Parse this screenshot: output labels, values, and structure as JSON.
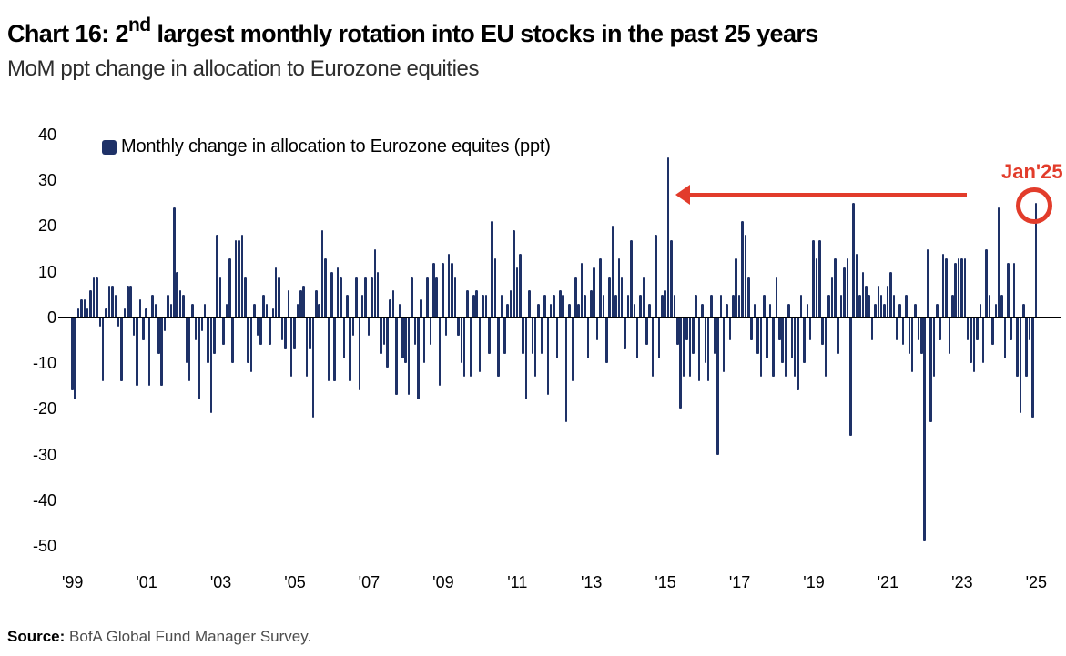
{
  "header": {
    "title_prefix": "Chart 16: 2",
    "title_superscript": "nd",
    "title_suffix": " largest monthly rotation into EU stocks in the past 25 years",
    "subtitle": "MoM ppt change in allocation to Eurozone equities"
  },
  "legend": {
    "label": "Monthly change in allocation to Eurozone equites (ppt)",
    "swatch_color": "#1e3167"
  },
  "annotation": {
    "label": "Jan'25",
    "color": "#e23c2b",
    "circled_month": "2025-01",
    "arrow_points_to_month": "2015-02"
  },
  "source": {
    "prefix": "Source:",
    "text": " BofA Global Fund Manager Survey."
  },
  "chart_data": {
    "type": "bar",
    "title": "Chart 16: 2nd largest monthly rotation into EU stocks in the past 25 years",
    "subtitle": "MoM ppt change in allocation to Eurozone equities",
    "xlabel": "",
    "ylabel": "",
    "ylim": [
      -50,
      40
    ],
    "yticks": [
      40,
      30,
      20,
      10,
      0,
      -10,
      -20,
      -30,
      -40,
      -50
    ],
    "xticklabels": [
      "'99",
      "'01",
      "'03",
      "'05",
      "'07",
      "'09",
      "'11",
      "'13",
      "'15",
      "'17",
      "'19",
      "'21",
      "'23",
      "'25"
    ],
    "x_start_year": 1999,
    "start_month": "1999-01",
    "end_month": "2025-01",
    "bar_color": "#1e3167",
    "grid": false,
    "legend_position": "top-left",
    "values": [
      -16,
      -18,
      2,
      4,
      4,
      2,
      6,
      9,
      9,
      -2,
      -14,
      2,
      7,
      7,
      5,
      -2,
      -14,
      2,
      7,
      7,
      -4,
      -15,
      4,
      -5,
      2,
      -15,
      5,
      3,
      -8,
      -15,
      -3,
      5,
      3,
      24,
      10,
      6,
      5,
      -10,
      -14,
      3,
      -5,
      -18,
      -3,
      3,
      -10,
      -21,
      -8,
      18,
      9,
      -6,
      3,
      13,
      -10,
      17,
      17,
      18,
      9,
      -10,
      -12,
      3,
      -4,
      -6,
      5,
      3,
      -6,
      2,
      11,
      9,
      -5,
      -7,
      6,
      -13,
      -7,
      3,
      6,
      7,
      -13,
      -7,
      -22,
      6,
      3,
      19,
      13,
      -14,
      10,
      -14,
      11,
      9,
      -9,
      5,
      -14,
      -4,
      9,
      -16,
      5,
      9,
      -4,
      9,
      15,
      10,
      -8,
      -6,
      -11,
      4,
      6,
      -17,
      3,
      -9,
      -10,
      -17,
      9,
      -6,
      -18,
      4,
      -10,
      9,
      -6,
      12,
      9,
      -15,
      12,
      -4,
      14,
      12,
      9,
      -4,
      -10,
      -13,
      6,
      -13,
      5,
      6,
      -12,
      5,
      5,
      -8,
      21,
      13,
      -13,
      5,
      -8,
      3,
      6,
      19,
      11,
      14,
      -8,
      -18,
      6,
      -8,
      -13,
      3,
      -8,
      5,
      -17,
      3,
      5,
      -9,
      6,
      5,
      -23,
      3,
      -14,
      9,
      3,
      12,
      5,
      -9,
      6,
      11,
      -5,
      13,
      5,
      -10,
      9,
      20,
      5,
      13,
      9,
      -7,
      5,
      17,
      3,
      -9,
      5,
      9,
      -6,
      3,
      -13,
      18,
      -9,
      5,
      6,
      35,
      17,
      5,
      -6,
      -20,
      -13,
      -5,
      -13,
      -8,
      5,
      -14,
      3,
      -10,
      -14,
      5,
      -8,
      -30,
      5,
      -12,
      3,
      -5,
      5,
      13,
      5,
      21,
      18,
      9,
      -5,
      3,
      -8,
      -13,
      5,
      -9,
      3,
      -13,
      9,
      -5,
      -10,
      -13,
      3,
      -9,
      -13,
      -16,
      5,
      -10,
      3,
      -5,
      17,
      13,
      17,
      -6,
      -13,
      5,
      9,
      13,
      -8,
      5,
      11,
      13,
      -26,
      25,
      14,
      5,
      10,
      7,
      5,
      -5,
      3,
      7,
      5,
      3,
      7,
      10,
      5,
      -5,
      3,
      -6,
      5,
      -8,
      -12,
      3,
      -5,
      -8,
      -49,
      15,
      -23,
      -13,
      3,
      -5,
      14,
      13,
      -8,
      5,
      12,
      13,
      13,
      13,
      -5,
      -10,
      -12,
      -5,
      3,
      -10,
      15,
      5,
      -6,
      3,
      24,
      5,
      -9,
      12,
      -5,
      12,
      -13,
      -21,
      3,
      -13,
      -5,
      -22,
      25
    ],
    "highlight": {
      "index": 312,
      "label": "Jan'25",
      "value": 25
    }
  }
}
